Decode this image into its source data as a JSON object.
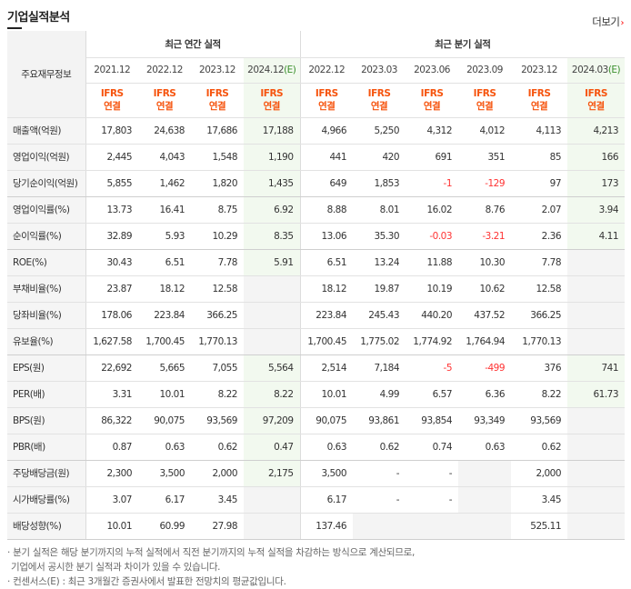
{
  "title": "기업실적분석",
  "more_label": "더보기",
  "corner_label": "주요재무정보",
  "group_annual": "최근 연간 실적",
  "group_quarter": "최근 분기 실적",
  "periods": [
    "2021.12",
    "2022.12",
    "2023.12",
    "2024.12(E)",
    "2022.12",
    "2023.03",
    "2023.06",
    "2023.09",
    "2023.12",
    "2024.03(E)"
  ],
  "ifrs_top": "IFRS",
  "ifrs_bottom": "연결",
  "rows": [
    {
      "label": "매출액(억원)",
      "values": [
        "17,803",
        "24,638",
        "17,686",
        "17,188",
        "4,966",
        "5,250",
        "4,312",
        "4,012",
        "4,113",
        "4,213"
      ]
    },
    {
      "label": "영업이익(억원)",
      "values": [
        "2,445",
        "4,043",
        "1,548",
        "1,190",
        "441",
        "420",
        "691",
        "351",
        "85",
        "166"
      ]
    },
    {
      "label": "당기순이익(억원)",
      "values": [
        "5,855",
        "1,462",
        "1,820",
        "1,435",
        "649",
        "1,853",
        "-1",
        "-129",
        "97",
        "173"
      ]
    },
    {
      "label": "영업이익률(%)",
      "values": [
        "13.73",
        "16.41",
        "8.75",
        "6.92",
        "8.88",
        "8.01",
        "16.02",
        "8.76",
        "2.07",
        "3.94"
      ]
    },
    {
      "label": "순이익률(%)",
      "values": [
        "32.89",
        "5.93",
        "10.29",
        "8.35",
        "13.06",
        "35.30",
        "-0.03",
        "-3.21",
        "2.36",
        "4.11"
      ]
    },
    {
      "label": "ROE(%)",
      "values": [
        "30.43",
        "6.51",
        "7.78",
        "5.91",
        "6.51",
        "13.24",
        "11.88",
        "10.30",
        "7.78",
        ""
      ]
    },
    {
      "label": "부채비율(%)",
      "values": [
        "23.87",
        "18.12",
        "12.58",
        "",
        "18.12",
        "19.87",
        "10.19",
        "10.62",
        "12.58",
        ""
      ]
    },
    {
      "label": "당좌비율(%)",
      "values": [
        "178.06",
        "223.84",
        "366.25",
        "",
        "223.84",
        "245.43",
        "440.20",
        "437.52",
        "366.25",
        ""
      ]
    },
    {
      "label": "유보율(%)",
      "values": [
        "1,627.58",
        "1,700.45",
        "1,770.13",
        "",
        "1,700.45",
        "1,775.02",
        "1,774.92",
        "1,764.94",
        "1,770.13",
        ""
      ]
    },
    {
      "label": "EPS(원)",
      "values": [
        "22,692",
        "5,665",
        "7,055",
        "5,564",
        "2,514",
        "7,184",
        "-5",
        "-499",
        "376",
        "741"
      ]
    },
    {
      "label": "PER(배)",
      "values": [
        "3.31",
        "10.01",
        "8.22",
        "8.22",
        "10.01",
        "4.99",
        "6.57",
        "6.36",
        "8.22",
        "61.73"
      ]
    },
    {
      "label": "BPS(원)",
      "values": [
        "86,322",
        "90,075",
        "93,569",
        "97,209",
        "90,075",
        "93,861",
        "93,854",
        "93,349",
        "93,569",
        ""
      ]
    },
    {
      "label": "PBR(배)",
      "values": [
        "0.87",
        "0.63",
        "0.62",
        "0.47",
        "0.63",
        "0.62",
        "0.74",
        "0.63",
        "0.62",
        ""
      ]
    },
    {
      "label": "주당배당금(원)",
      "values": [
        "2,300",
        "3,500",
        "2,000",
        "2,175",
        "3,500",
        "-",
        "-",
        "",
        "2,000",
        ""
      ]
    },
    {
      "label": "시가배당률(%)",
      "values": [
        "3.07",
        "6.17",
        "3.45",
        "",
        "6.17",
        "-",
        "-",
        "",
        "3.45",
        ""
      ]
    },
    {
      "label": "배당성향(%)",
      "values": [
        "10.01",
        "60.99",
        "27.98",
        "",
        "137.46",
        "",
        "",
        "",
        "525.11",
        ""
      ]
    }
  ],
  "notes": [
    "· 분기 실적은 해당 분기까지의 누적 실적에서 직전 분기까지의 누적 실적을 차감하는 방식으로 계산되므로,",
    "  기업에서 공시한 분기 실적과 차이가 있을 수 있습니다.",
    "· 컨센서스(E) : 최근 3개월간 증권사에서 발표한 전망치의 평균값입니다."
  ],
  "colors": {
    "ifrs": "#f6540e",
    "negative": "#f33333",
    "estimate_bg": "#f2f9ef"
  }
}
